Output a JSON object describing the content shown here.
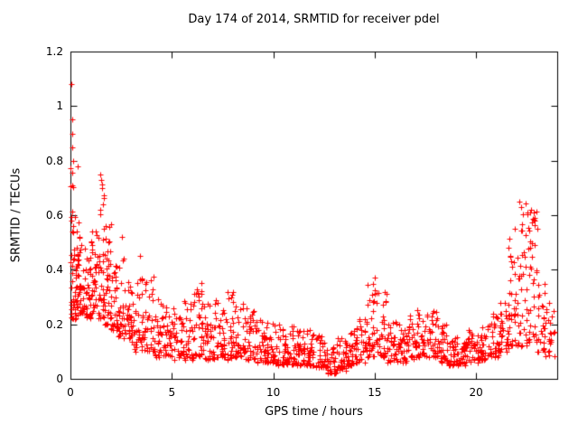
{
  "figure": {
    "background": "#ffffff",
    "text_color": "#000000",
    "axis_color": "#000000"
  },
  "chart_data": {
    "type": "scatter",
    "title": "Day 174 of 2014, SRMTID for receiver pdel",
    "xlabel": "GPS time / hours",
    "ylabel": "SRMTID / TECUs",
    "xlim": [
      0,
      24
    ],
    "ylim": [
      0,
      1.2
    ],
    "xticks": {
      "values": [
        0,
        5,
        10,
        15,
        20
      ],
      "labels": [
        "0",
        "5",
        "10",
        "15",
        "20"
      ]
    },
    "yticks": {
      "values": [
        0,
        0.2,
        0.4,
        0.6,
        0.8,
        1,
        1.2
      ],
      "labels": [
        "0",
        "0.2",
        "0.4",
        "0.6",
        "0.8",
        "1",
        "1.2"
      ]
    },
    "grid": false,
    "legend": "none",
    "marker": {
      "shape": "plus",
      "color": "#ff0000",
      "size": 7
    },
    "series_name": "SRMTID",
    "seed": 174,
    "skew": 1.7,
    "density_bins": [
      [
        0.0,
        0.15,
        30,
        0.22,
        0.95
      ],
      [
        0.15,
        0.4,
        38,
        0.22,
        0.6
      ],
      [
        0.4,
        0.7,
        34,
        0.24,
        0.55
      ],
      [
        0.7,
        1.0,
        30,
        0.22,
        0.45
      ],
      [
        1.0,
        1.3,
        32,
        0.24,
        0.55
      ],
      [
        1.3,
        1.7,
        40,
        0.22,
        0.72
      ],
      [
        1.7,
        2.0,
        34,
        0.2,
        0.6
      ],
      [
        2.0,
        2.3,
        30,
        0.18,
        0.42
      ],
      [
        2.3,
        2.7,
        32,
        0.15,
        0.45
      ],
      [
        2.7,
        3.1,
        32,
        0.13,
        0.38
      ],
      [
        3.1,
        3.6,
        34,
        0.1,
        0.42
      ],
      [
        3.6,
        4.1,
        34,
        0.1,
        0.38
      ],
      [
        4.1,
        4.6,
        34,
        0.08,
        0.3
      ],
      [
        4.6,
        5.1,
        34,
        0.08,
        0.28
      ],
      [
        5.1,
        5.6,
        34,
        0.07,
        0.26
      ],
      [
        5.6,
        6.1,
        34,
        0.07,
        0.3
      ],
      [
        6.1,
        6.6,
        34,
        0.08,
        0.33
      ],
      [
        6.6,
        7.1,
        34,
        0.07,
        0.28
      ],
      [
        7.1,
        7.6,
        34,
        0.08,
        0.3
      ],
      [
        7.6,
        8.1,
        34,
        0.07,
        0.32
      ],
      [
        8.1,
        8.6,
        34,
        0.08,
        0.28
      ],
      [
        8.6,
        9.1,
        34,
        0.07,
        0.26
      ],
      [
        9.1,
        9.6,
        34,
        0.06,
        0.24
      ],
      [
        9.6,
        10.1,
        34,
        0.06,
        0.22
      ],
      [
        10.1,
        10.6,
        34,
        0.05,
        0.2
      ],
      [
        10.6,
        11.1,
        34,
        0.05,
        0.2
      ],
      [
        11.1,
        11.6,
        34,
        0.05,
        0.19
      ],
      [
        11.6,
        12.1,
        34,
        0.05,
        0.18
      ],
      [
        12.1,
        12.6,
        34,
        0.04,
        0.16
      ],
      [
        12.6,
        13.1,
        36,
        0.02,
        0.12
      ],
      [
        13.1,
        13.6,
        34,
        0.03,
        0.15
      ],
      [
        13.6,
        14.1,
        34,
        0.05,
        0.18
      ],
      [
        14.1,
        14.6,
        34,
        0.06,
        0.22
      ],
      [
        14.6,
        15.1,
        34,
        0.08,
        0.36
      ],
      [
        15.1,
        15.6,
        34,
        0.08,
        0.32
      ],
      [
        15.6,
        16.1,
        34,
        0.06,
        0.22
      ],
      [
        16.1,
        16.6,
        34,
        0.06,
        0.2
      ],
      [
        16.6,
        17.1,
        34,
        0.07,
        0.24
      ],
      [
        17.1,
        17.6,
        34,
        0.08,
        0.26
      ],
      [
        17.6,
        18.1,
        34,
        0.08,
        0.25
      ],
      [
        18.1,
        18.6,
        34,
        0.06,
        0.2
      ],
      [
        18.6,
        19.1,
        34,
        0.05,
        0.16
      ],
      [
        19.1,
        19.6,
        34,
        0.05,
        0.14
      ],
      [
        19.6,
        20.1,
        34,
        0.06,
        0.18
      ],
      [
        20.1,
        20.6,
        34,
        0.07,
        0.2
      ],
      [
        20.6,
        21.1,
        34,
        0.08,
        0.24
      ],
      [
        21.1,
        21.6,
        36,
        0.1,
        0.28
      ],
      [
        21.6,
        22.1,
        38,
        0.12,
        0.55
      ],
      [
        22.1,
        22.6,
        38,
        0.12,
        0.66
      ],
      [
        22.6,
        23.0,
        36,
        0.12,
        0.62
      ],
      [
        23.0,
        23.4,
        26,
        0.1,
        0.35
      ],
      [
        23.4,
        23.9,
        22,
        0.08,
        0.28
      ]
    ],
    "outliers": [
      [
        0.05,
        1.08
      ],
      [
        0.07,
        0.95
      ],
      [
        0.08,
        0.9
      ],
      [
        0.1,
        0.85
      ],
      [
        0.12,
        0.8
      ],
      [
        0.35,
        0.78
      ],
      [
        1.45,
        0.75
      ],
      [
        1.5,
        0.73
      ],
      [
        1.55,
        0.7
      ],
      [
        2.55,
        0.52
      ],
      [
        3.45,
        0.45
      ],
      [
        6.45,
        0.35
      ],
      [
        15.0,
        0.37
      ],
      [
        21.9,
        0.55
      ],
      [
        22.15,
        0.65
      ],
      [
        22.2,
        0.63
      ],
      [
        22.85,
        0.61
      ],
      [
        22.9,
        0.59
      ],
      [
        23.0,
        0.55
      ]
    ],
    "notes": "density_bins rows are [x_start,x_end,count,y_min,y_max] envelopes read from the plot; outliers are individually visible extreme points."
  }
}
